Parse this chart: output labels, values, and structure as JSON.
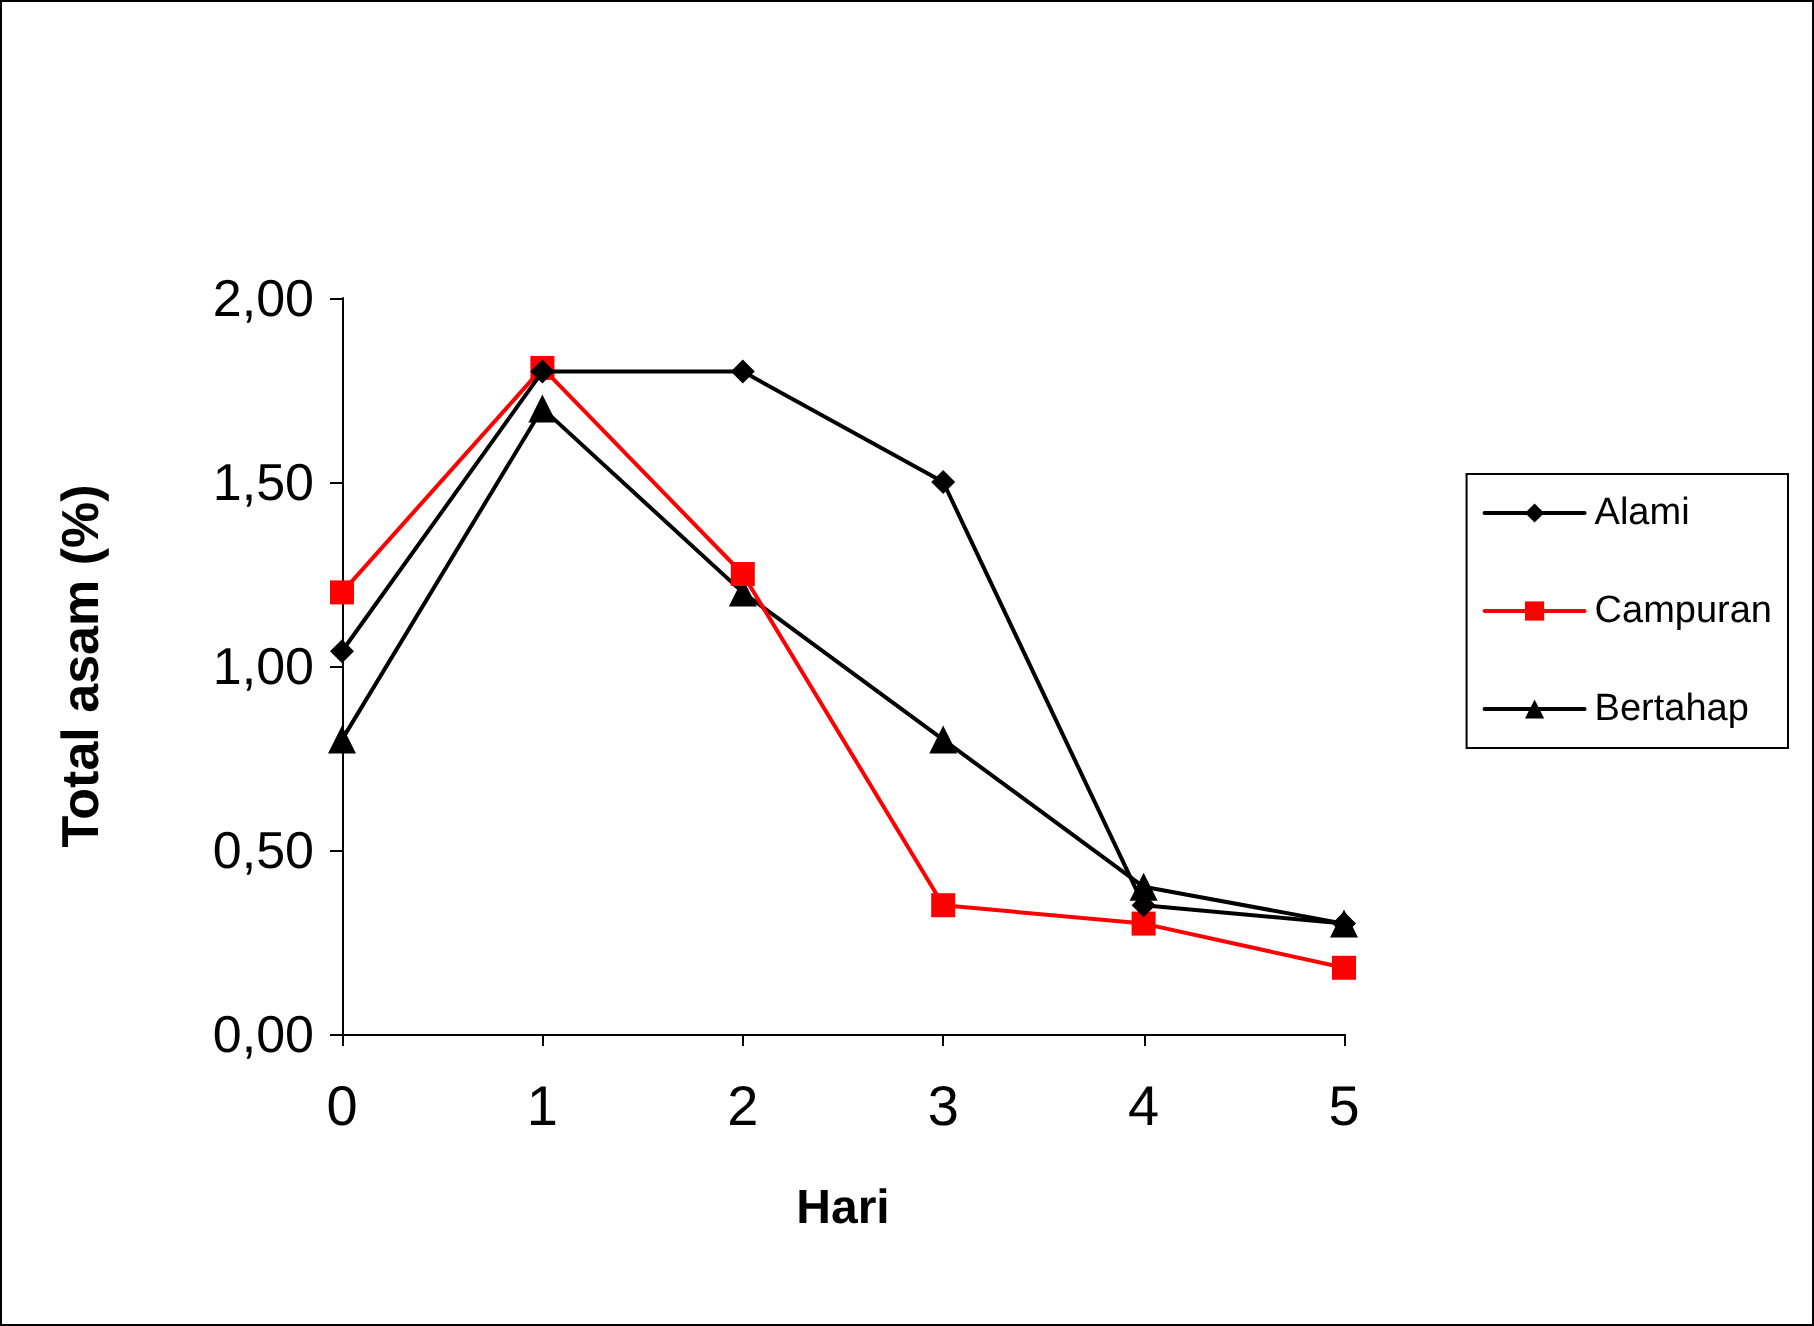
{
  "chart_data": {
    "type": "line",
    "xlabel": "Hari",
    "ylabel": "Total asam (%)",
    "categories": [
      "0",
      "1",
      "2",
      "3",
      "4",
      "5"
    ],
    "series": [
      {
        "name": "Alami",
        "color": "#000000",
        "marker": "diamond",
        "values": [
          1.04,
          1.8,
          1.8,
          1.5,
          0.35,
          0.3
        ]
      },
      {
        "name": "Campuran",
        "color": "#ff0000",
        "marker": "square",
        "values": [
          1.2,
          1.81,
          1.25,
          0.35,
          0.3,
          0.18
        ]
      },
      {
        "name": "Bertahap",
        "color": "#000000",
        "marker": "triangle",
        "values": [
          0.8,
          1.7,
          1.2,
          0.8,
          0.4,
          0.3
        ]
      }
    ],
    "ylim": [
      0,
      2
    ],
    "yticks": [
      {
        "value": 0,
        "label": "0,00"
      },
      {
        "value": 0.5,
        "label": "0,50"
      },
      {
        "value": 1,
        "label": "1,00"
      },
      {
        "value": 1.5,
        "label": "1,50"
      },
      {
        "value": 2,
        "label": "2,00"
      }
    ],
    "grid": false,
    "legend": "right",
    "line_style": "solid"
  }
}
